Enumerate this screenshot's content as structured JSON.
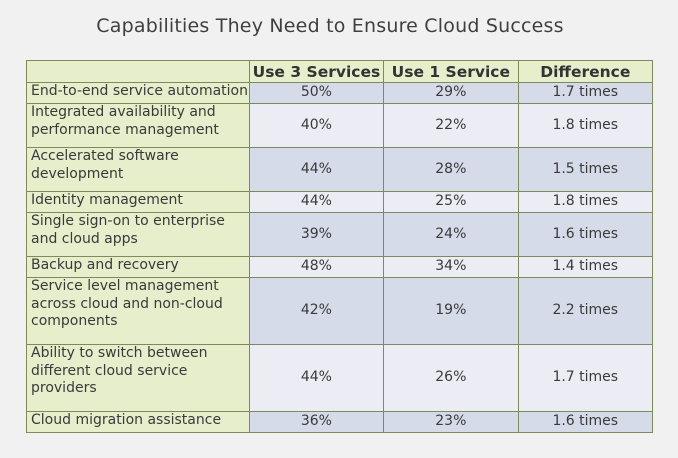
{
  "title": "Capabilities They Need to Ensure Cloud Success",
  "chart_data": {
    "type": "table",
    "title": "Capabilities They Need to Ensure Cloud Success",
    "columns": [
      "",
      "Use 3 Services",
      "Use 1 Service",
      "Difference"
    ],
    "rows": [
      {
        "capability": "End-to-end service automation",
        "use3": "50%",
        "use1": "29%",
        "difference": "1.7 times"
      },
      {
        "capability": "Integrated availability and performance management",
        "use3": "40%",
        "use1": "22%",
        "difference": "1.8 times"
      },
      {
        "capability": "Accelerated software development",
        "use3": "44%",
        "use1": "28%",
        "difference": "1.5 times"
      },
      {
        "capability": "Identity management",
        "use3": "44%",
        "use1": "25%",
        "difference": "1.8 times"
      },
      {
        "capability": "Single sign-on to enterprise and cloud apps",
        "use3": "39%",
        "use1": "24%",
        "difference": "1.6 times"
      },
      {
        "capability": "Backup and recovery",
        "use3": "48%",
        "use1": "34%",
        "difference": "1.4 times"
      },
      {
        "capability": "Service level management across cloud and non-cloud components",
        "use3": "42%",
        "use1": "19%",
        "difference": "2.2 times"
      },
      {
        "capability": "Ability to switch between different cloud service providers",
        "use3": "44%",
        "use1": "26%",
        "difference": "1.7 times"
      },
      {
        "capability": "Cloud migration assistance",
        "use3": "36%",
        "use1": "23%",
        "difference": "1.6 times"
      }
    ]
  }
}
